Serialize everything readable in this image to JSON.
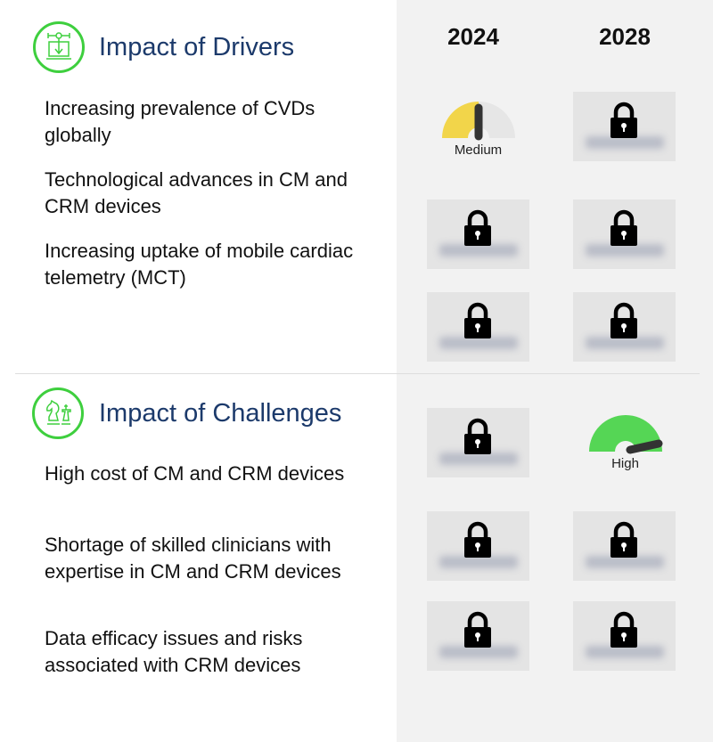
{
  "columns": [
    "2024",
    "2028"
  ],
  "drivers": {
    "title": "Impact of Drivers",
    "items": [
      "Increasing prevalence of CVDs globally",
      "Technological advances in CM and CRM devices",
      "Increasing uptake of mobile cardiac telemetry (MCT)"
    ]
  },
  "challenges": {
    "title": "Impact of Challenges",
    "items": [
      "High cost of CM and CRM devices",
      "Shortage of skilled clinicians with expertise in CM and CRM devices",
      "Data efficacy issues and risks associated with CRM devices"
    ]
  },
  "ratings": {
    "drivers_2024_1": {
      "label": "Medium",
      "level": 0.5,
      "color": "#f2d54a"
    },
    "challenges_2028_1": {
      "label": "High",
      "level": 1.0,
      "color": "#55d655"
    }
  },
  "locked_icon": "padlock-icon"
}
